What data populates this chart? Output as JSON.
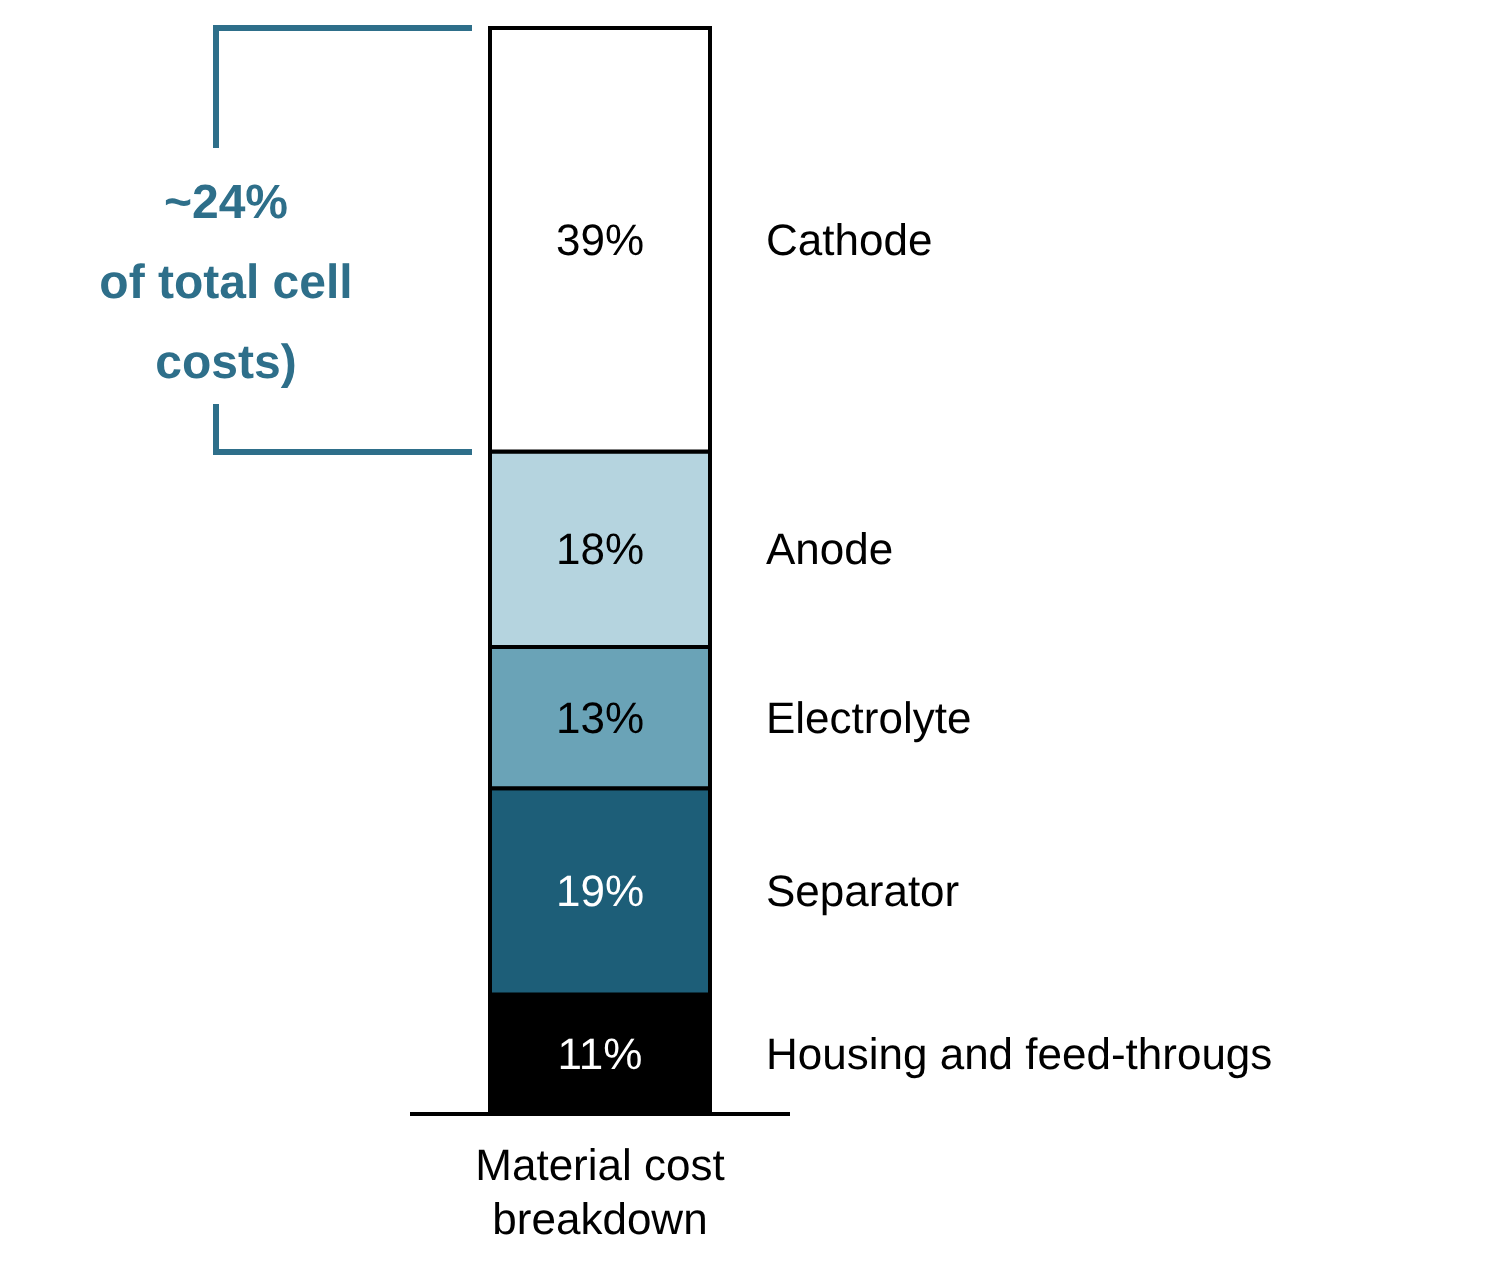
{
  "chart_data": {
    "type": "bar",
    "stacked": true,
    "categories": [
      "Material cost breakdown"
    ],
    "series": [
      {
        "name": "Housing and feed-througs",
        "color": "#000000",
        "values": [
          11
        ],
        "value_labels": [
          "11%"
        ]
      },
      {
        "name": "Separator",
        "color": "#1d5e78",
        "values": [
          19
        ],
        "value_labels": [
          "19%"
        ]
      },
      {
        "name": "Electrolyte",
        "color": "#6aa3b7",
        "values": [
          13
        ],
        "value_labels": [
          "13%"
        ]
      },
      {
        "name": "Anode",
        "color": "#b5d4df",
        "values": [
          18
        ],
        "value_labels": [
          "18%"
        ]
      },
      {
        "name": "Cathode",
        "color": "#ffffff",
        "values": [
          39
        ],
        "value_labels": [
          "39%"
        ]
      }
    ],
    "annotations": [
      "~24%\nof total cell costs)"
    ]
  }
}
